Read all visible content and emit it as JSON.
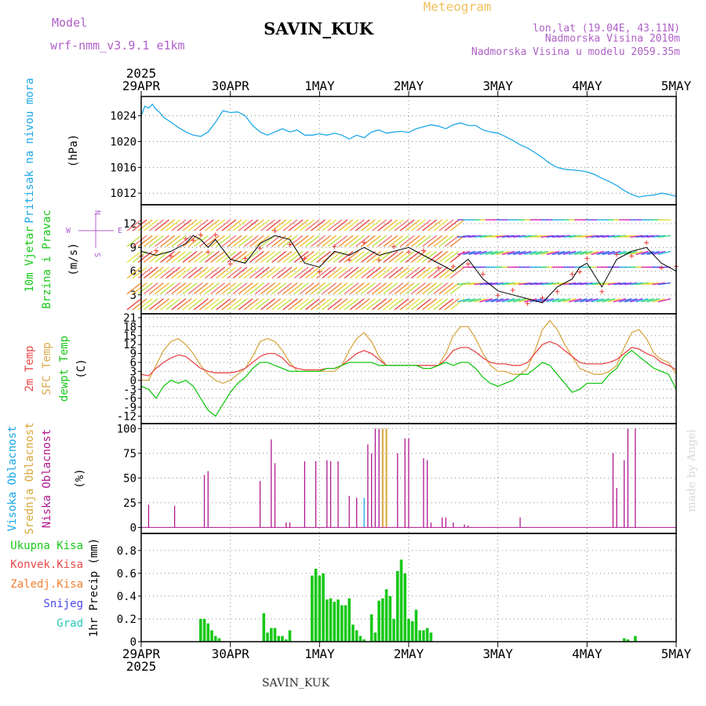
{
  "header": {
    "model_label": "Model",
    "model_name": "wrf-nmm_v3.9.1 e1km",
    "station": "SAVIN_KUK",
    "product": "Meteogram",
    "lonlat": "lon,lat (19.04E, 43.11N)",
    "elev": "Nadmorska Visina 2010m",
    "elev_model": "Nadmorska Visina u modelu 2059.35m",
    "footer": "SAVIN_KUK",
    "credit": "made by Angel"
  },
  "colors": {
    "pressure": "#1ea8e8",
    "temp2m": "#e84848",
    "sfc": "#d8a848",
    "dew": "#18c818",
    "high_cloud": "#18a8e8",
    "mid_cloud": "#d8a838",
    "low_cloud": "#b01890",
    "rain": "#18c818",
    "conv": "#e84848",
    "frozen": "#f08030",
    "snow": "#4848e8",
    "grad": "#28c8b8"
  },
  "chart_data": [
    {
      "type": "line",
      "panel": "pressure",
      "ylabel": [
        "Pritisak na nivou mora",
        "(hPa)"
      ],
      "yticks": [
        1012,
        1016,
        1020,
        1024
      ],
      "ylim": [
        1010.2,
        1027.0
      ],
      "xlim": [
        0,
        144
      ],
      "series": [
        {
          "color_key": "pressure",
          "x": [
            0,
            1,
            2,
            3,
            4,
            5,
            6,
            8,
            10,
            12,
            14,
            16,
            18,
            20,
            22,
            24,
            26,
            28,
            30,
            32,
            34,
            36,
            38,
            40,
            42,
            44,
            46,
            48,
            50,
            52,
            54,
            56,
            58,
            60,
            62,
            64,
            66,
            68,
            70,
            72,
            74,
            76,
            78,
            80,
            82,
            84,
            86,
            88,
            90,
            92,
            94,
            96,
            98,
            100,
            102,
            104,
            106,
            108,
            110,
            112,
            114,
            116,
            118,
            120,
            122,
            124,
            126,
            128,
            130,
            132,
            134,
            136,
            138,
            140,
            142,
            144
          ],
          "y": [
            1024.0,
            1025.5,
            1025.2,
            1025.8,
            1025.0,
            1024.5,
            1023.8,
            1023.0,
            1022.2,
            1021.5,
            1021.0,
            1020.8,
            1021.5,
            1023.0,
            1024.8,
            1024.5,
            1024.6,
            1024.0,
            1022.5,
            1021.5,
            1021.0,
            1021.5,
            1022.0,
            1021.5,
            1021.8,
            1021.0,
            1021.0,
            1021.2,
            1021.0,
            1021.3,
            1021.0,
            1020.4,
            1021.0,
            1020.6,
            1021.5,
            1021.8,
            1021.3,
            1021.5,
            1021.6,
            1021.4,
            1022.0,
            1022.3,
            1022.6,
            1022.4,
            1022.0,
            1022.6,
            1022.9,
            1022.5,
            1022.5,
            1021.8,
            1021.5,
            1021.3,
            1020.8,
            1020.2,
            1019.5,
            1019.0,
            1018.3,
            1017.5,
            1016.6,
            1016.0,
            1015.7,
            1015.6,
            1015.5,
            1015.3,
            1014.9,
            1014.3,
            1013.8,
            1013.2,
            1012.4,
            1011.8,
            1011.4,
            1011.6,
            1011.7,
            1012.0,
            1011.8,
            1011.5
          ]
        }
      ]
    },
    {
      "type": "line",
      "panel": "wind",
      "ylabel": [
        "10m Vjetar",
        "Brzina i Pravac",
        "(m/s)"
      ],
      "compass": {
        "north": "N",
        "east": "E",
        "west": "W",
        "south": "S"
      },
      "yticks": [
        3,
        6,
        9,
        12
      ],
      "ylim": [
        0.6,
        14.4
      ],
      "xlim": [
        0,
        144
      ],
      "series": [
        {
          "color": "#000000",
          "x": [
            0,
            4,
            8,
            12,
            14,
            16,
            18,
            20,
            24,
            28,
            32,
            36,
            40,
            44,
            48,
            52,
            56,
            60,
            64,
            68,
            72,
            76,
            80,
            84,
            88,
            92,
            96,
            100,
            104,
            108,
            112,
            116,
            118,
            120,
            124,
            128,
            132,
            136,
            140,
            144
          ],
          "y": [
            8.5,
            8.0,
            8.5,
            9.5,
            10.5,
            10.0,
            9.0,
            10.0,
            7.5,
            7.0,
            9.5,
            10.5,
            10.0,
            7.0,
            6.5,
            8.5,
            8.0,
            9.0,
            8.0,
            8.5,
            9.0,
            8.0,
            7.0,
            6.0,
            7.5,
            5.0,
            3.5,
            3.0,
            2.5,
            2.0,
            4.0,
            5.0,
            6.5,
            7.0,
            4.0,
            7.5,
            8.5,
            9.0,
            7.0,
            6.0
          ]
        }
      ]
    },
    {
      "type": "line",
      "panel": "temperature",
      "ylabel": [
        "2m Temp",
        "SFC Temp",
        "dewpt Temp",
        "(C)"
      ],
      "yticks": [
        -12,
        -9,
        -6,
        -3,
        0,
        3,
        6,
        9,
        12,
        15,
        18,
        21
      ],
      "ylim": [
        -14.5,
        22.3
      ],
      "xlim": [
        0,
        144
      ],
      "series": [
        {
          "color_key": "sfc",
          "x": [
            0,
            2,
            4,
            6,
            8,
            10,
            12,
            14,
            16,
            18,
            20,
            22,
            24,
            26,
            28,
            30,
            32,
            34,
            36,
            38,
            40,
            42,
            44,
            46,
            48,
            50,
            52,
            54,
            56,
            58,
            60,
            62,
            64,
            66,
            68,
            70,
            72,
            74,
            76,
            78,
            80,
            82,
            84,
            86,
            88,
            90,
            92,
            94,
            96,
            98,
            100,
            102,
            104,
            106,
            108,
            110,
            112,
            114,
            116,
            118,
            120,
            122,
            124,
            126,
            128,
            130,
            132,
            134,
            136,
            138,
            140,
            142,
            144
          ],
          "y": [
            0,
            0,
            5,
            10,
            13,
            14,
            12,
            9,
            5,
            2,
            0,
            -1,
            0,
            2,
            4,
            8,
            13,
            14,
            13,
            10,
            6,
            3,
            3,
            3,
            3,
            3,
            3,
            5,
            10,
            14,
            16,
            13,
            8,
            5,
            5,
            5,
            5,
            5,
            4,
            4,
            5,
            9,
            15,
            18,
            18,
            14,
            9,
            5,
            3,
            3,
            2,
            2,
            4,
            10,
            17,
            20,
            17,
            12,
            8,
            4,
            3,
            2,
            2,
            3,
            5,
            11,
            16,
            17,
            14,
            9,
            7,
            6,
            2
          ]
        },
        {
          "color_key": "temp2m",
          "x": [
            0,
            2,
            4,
            6,
            8,
            10,
            12,
            14,
            16,
            18,
            20,
            22,
            24,
            26,
            28,
            30,
            32,
            34,
            36,
            38,
            40,
            42,
            44,
            46,
            48,
            50,
            52,
            54,
            56,
            58,
            60,
            62,
            64,
            66,
            68,
            70,
            72,
            74,
            76,
            78,
            80,
            82,
            84,
            86,
            88,
            90,
            92,
            94,
            96,
            98,
            100,
            102,
            104,
            106,
            108,
            110,
            112,
            114,
            116,
            118,
            120,
            122,
            124,
            126,
            128,
            130,
            132,
            134,
            136,
            138,
            140,
            142,
            144
          ],
          "y": [
            2,
            1.5,
            4,
            6,
            7.5,
            8.5,
            8,
            6,
            4,
            3,
            2.5,
            2.5,
            2.5,
            3,
            4,
            6,
            8,
            9,
            9,
            7.5,
            5,
            4,
            3.5,
            3.5,
            3.5,
            4,
            4,
            5,
            7,
            9,
            10,
            9,
            7,
            5,
            5,
            5,
            5,
            5,
            5,
            5,
            5,
            7,
            10,
            11,
            11,
            9.5,
            7.5,
            6,
            5.5,
            5.5,
            5,
            5,
            6,
            9,
            12,
            13,
            12,
            10,
            8,
            6,
            5.5,
            5.5,
            5.5,
            6,
            7,
            9,
            11,
            10.5,
            9,
            8,
            6,
            5,
            3.5
          ]
        },
        {
          "color_key": "dew",
          "x": [
            0,
            2,
            4,
            6,
            8,
            10,
            12,
            14,
            16,
            18,
            20,
            22,
            24,
            26,
            28,
            30,
            32,
            34,
            36,
            38,
            40,
            42,
            44,
            46,
            48,
            50,
            52,
            54,
            56,
            58,
            60,
            62,
            64,
            66,
            68,
            70,
            72,
            74,
            76,
            78,
            80,
            82,
            84,
            86,
            88,
            90,
            92,
            94,
            96,
            98,
            100,
            102,
            104,
            106,
            108,
            110,
            112,
            114,
            116,
            118,
            120,
            122,
            124,
            126,
            128,
            130,
            132,
            134,
            136,
            138,
            140,
            142,
            144
          ],
          "y": [
            -2,
            -3,
            -6,
            -2,
            0,
            -1,
            0,
            -2,
            -6,
            -10,
            -12,
            -8,
            -4,
            -1,
            1,
            4,
            6,
            6,
            5,
            4,
            3,
            3,
            3,
            3,
            3,
            4,
            4,
            5,
            6,
            6,
            6,
            6,
            5,
            5,
            5,
            5,
            5,
            5,
            4,
            4,
            5,
            6,
            5,
            6,
            6,
            4,
            1,
            -1,
            -2,
            -1,
            0,
            2,
            2,
            4,
            6,
            5,
            2,
            -1,
            -4,
            -3,
            -1,
            -1,
            -1,
            2,
            4,
            8,
            10,
            8,
            6,
            4,
            3,
            2,
            -3
          ]
        }
      ]
    },
    {
      "type": "bar",
      "panel": "cloud",
      "ylabel": [
        "Visoka Oblacnost",
        "Srednja Oblacnost",
        "Niska Oblacnost",
        "(%)"
      ],
      "yticks": [
        0,
        25,
        50,
        75,
        100
      ],
      "ylim": [
        -6,
        105
      ],
      "xlim": [
        0,
        144
      ],
      "series": [
        {
          "name": "Niska Oblacnost",
          "color_key": "low_cloud",
          "x": [
            2,
            9,
            17,
            18,
            32,
            35,
            36,
            39,
            40,
            44,
            47,
            50,
            51,
            53,
            56,
            58,
            61,
            62,
            63,
            64,
            69,
            71,
            72,
            76,
            77,
            78,
            81,
            82,
            84,
            87,
            88,
            102,
            127,
            128,
            130,
            131,
            133
          ],
          "y": [
            23,
            22,
            53,
            57,
            47,
            89,
            65,
            5,
            5,
            67,
            67,
            68,
            67,
            67,
            32,
            30,
            84,
            75,
            100,
            100,
            75,
            90,
            90,
            70,
            68,
            5,
            10,
            10,
            5,
            3,
            2,
            10,
            75,
            40,
            68,
            100,
            100
          ]
        },
        {
          "name": "Srednja Oblacnost",
          "color_key": "mid_cloud",
          "x": [
            65,
            66
          ],
          "y": [
            100,
            100
          ]
        },
        {
          "name": "Visoka Oblacnost",
          "color_key": "high_cloud",
          "x": [
            60
          ],
          "y": [
            30
          ]
        }
      ]
    },
    {
      "type": "bar",
      "panel": "precip",
      "ylabel": [
        "1hr Precip (mm)"
      ],
      "legend": [
        "Ukupna Kisa",
        "Konvek.Kisa",
        "Zaledj.Kisa",
        "Snijeg",
        "Grad"
      ],
      "yticks": [
        0,
        0.2,
        0.4,
        0.6,
        0.8
      ],
      "ylim": [
        0,
        0.95
      ],
      "xlim": [
        0,
        144
      ],
      "series": [
        {
          "name": "Ukupna Kisa",
          "color_key": "rain",
          "x": [
            16,
            17,
            18,
            19,
            20,
            21,
            33,
            34,
            35,
            36,
            37,
            38,
            39,
            40,
            46,
            47,
            48,
            49,
            50,
            51,
            52,
            53,
            54,
            55,
            56,
            57,
            58,
            59,
            60,
            62,
            63,
            64,
            65,
            66,
            67,
            68,
            69,
            70,
            71,
            72,
            73,
            74,
            75,
            76,
            77,
            78,
            130,
            131,
            133
          ],
          "y": [
            0.2,
            0.2,
            0.16,
            0.1,
            0.05,
            0.03,
            0.25,
            0.08,
            0.12,
            0.12,
            0.05,
            0.05,
            0.02,
            0.1,
            0.58,
            0.64,
            0.58,
            0.6,
            0.37,
            0.38,
            0.35,
            0.37,
            0.32,
            0.32,
            0.38,
            0.15,
            0.1,
            0.05,
            0.02,
            0.24,
            0.08,
            0.36,
            0.38,
            0.46,
            0.4,
            0.2,
            0.62,
            0.72,
            0.6,
            0.2,
            0.18,
            0.28,
            0.1,
            0.1,
            0.12,
            0.08,
            0.03,
            0.02,
            0.05
          ]
        }
      ]
    }
  ],
  "time_axis": {
    "year": "2025",
    "labels": [
      "29APR",
      "30APR",
      "1MAY",
      "2MAY",
      "3MAY",
      "4MAY",
      "5MAY"
    ],
    "positions": [
      0,
      24,
      48,
      72,
      96,
      120,
      144
    ]
  }
}
